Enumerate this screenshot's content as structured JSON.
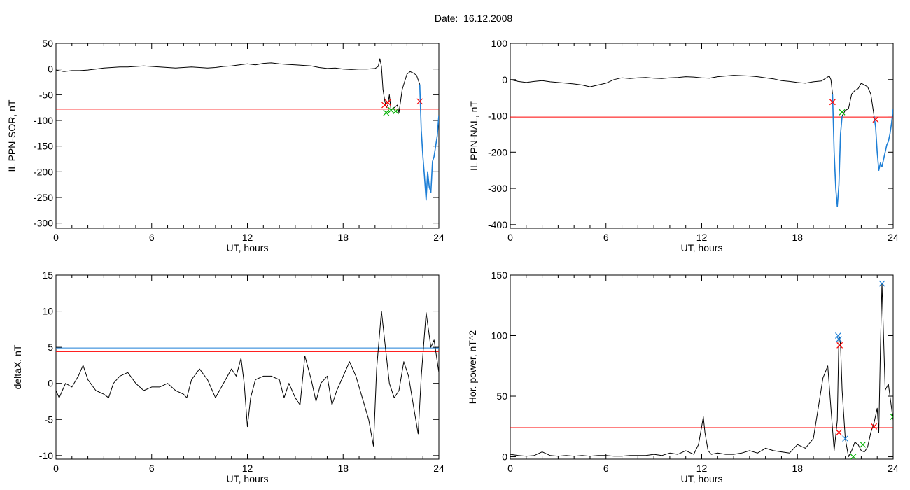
{
  "figure": {
    "title": "Date:  16.12.2008"
  },
  "chart_data": [
    {
      "type": "line",
      "xlabel": "UT, hours",
      "ylabel": "IL PPN-SOR, nT",
      "xlim": [
        0,
        24
      ],
      "ylim": [
        -310,
        50
      ],
      "x_ticks": [
        0,
        6,
        12,
        18,
        24
      ],
      "y_ticks": [
        50,
        0,
        -50,
        -100,
        -150,
        -200,
        -250,
        -300
      ],
      "threshold_lines": [
        {
          "color": "#ff0000",
          "value": -78
        }
      ],
      "series": [
        {
          "color": "#000000",
          "x": [
            0,
            0.5,
            1,
            1.5,
            2,
            2.5,
            3,
            3.5,
            4,
            4.5,
            5,
            5.5,
            6,
            6.5,
            7,
            7.5,
            8,
            8.5,
            9,
            9.5,
            10,
            10.5,
            11,
            11.5,
            12,
            12.5,
            13,
            13.5,
            14,
            14.5,
            15,
            15.5,
            16,
            16.5,
            17,
            17.5,
            18,
            18.5,
            19,
            19.5,
            20,
            20.2,
            20.3,
            20.4,
            20.5,
            20.6,
            20.7,
            20.8,
            20.9,
            21,
            21.2,
            21.4,
            21.5,
            21.7,
            21.9,
            22,
            22.2,
            22.4,
            22.6,
            22.8
          ],
          "y": [
            -2,
            -5,
            -3,
            -3,
            -2,
            0,
            2,
            3,
            4,
            4,
            5,
            6,
            5,
            4,
            3,
            2,
            3,
            4,
            3,
            2,
            3,
            5,
            6,
            8,
            10,
            8,
            11,
            12,
            10,
            9,
            8,
            7,
            6,
            3,
            1,
            2,
            0,
            -1,
            0,
            0,
            1,
            5,
            20,
            5,
            -40,
            -60,
            -75,
            -70,
            -50,
            -80,
            -75,
            -70,
            -85,
            -40,
            -20,
            -10,
            -5,
            -8,
            -12,
            -30
          ]
        },
        {
          "color": "#1e7fd6",
          "x": [
            22.8,
            22.9,
            23,
            23.1,
            23.2,
            23.3,
            23.4,
            23.5,
            23.6,
            23.7,
            23.8,
            23.9,
            24
          ],
          "y": [
            -30,
            -120,
            -170,
            -210,
            -255,
            -200,
            -230,
            -240,
            -180,
            -170,
            -150,
            -130,
            -90
          ]
        }
      ],
      "markers": [
        {
          "color": "#ff0000",
          "x": [
            20.6,
            20.8,
            22.8
          ],
          "y": [
            -70,
            -65,
            -63
          ]
        },
        {
          "color": "#00b000",
          "x": [
            20.7,
            21.0,
            21.3
          ],
          "y": [
            -85,
            -80,
            -82
          ]
        }
      ]
    },
    {
      "type": "line",
      "xlabel": "UT, hours",
      "ylabel": "IL PPN-NAL, nT",
      "xlim": [
        0,
        24
      ],
      "ylim": [
        -410,
        100
      ],
      "x_ticks": [
        0,
        6,
        12,
        18,
        24
      ],
      "y_ticks": [
        100,
        0,
        -100,
        -200,
        -300,
        -400
      ],
      "threshold_lines": [
        {
          "color": "#ff0000",
          "value": -103
        }
      ],
      "series": [
        {
          "color": "#000000",
          "x": [
            0,
            0.5,
            1,
            1.5,
            2,
            2.5,
            3,
            3.5,
            4,
            4.5,
            5,
            5.5,
            6,
            6.5,
            7,
            7.5,
            8,
            8.5,
            9,
            9.5,
            10,
            10.5,
            11,
            11.5,
            12,
            12.5,
            13,
            13.5,
            14,
            14.5,
            15,
            15.5,
            16,
            16.5,
            17,
            17.5,
            18,
            18.5,
            19,
            19.5,
            20,
            20.1,
            20.2
          ],
          "y": [
            0,
            -5,
            -8,
            -5,
            -3,
            -6,
            -8,
            -10,
            -12,
            -15,
            -20,
            -15,
            -10,
            0,
            5,
            3,
            5,
            6,
            4,
            3,
            5,
            6,
            8,
            7,
            5,
            4,
            8,
            10,
            12,
            11,
            10,
            8,
            5,
            2,
            -3,
            -5,
            -8,
            -10,
            -6,
            -4,
            10,
            0,
            -40
          ]
        },
        {
          "color": "#1e7fd6",
          "x": [
            20.2,
            20.3,
            20.4,
            20.5,
            20.6,
            20.7,
            20.8
          ],
          "y": [
            -40,
            -200,
            -300,
            -350,
            -290,
            -150,
            -100
          ]
        },
        {
          "color": "#000000",
          "x": [
            20.8,
            21,
            21.2,
            21.4,
            21.6,
            21.8,
            22,
            22.2,
            22.4,
            22.6,
            22.8
          ],
          "y": [
            -100,
            -85,
            -80,
            -40,
            -30,
            -25,
            -10,
            -15,
            -20,
            -40,
            -100
          ]
        },
        {
          "color": "#1e7fd6",
          "x": [
            22.8,
            22.9,
            23,
            23.1,
            23.2,
            23.3,
            23.4,
            23.5,
            23.6,
            23.7,
            23.8,
            23.9,
            24
          ],
          "y": [
            -100,
            -130,
            -200,
            -250,
            -230,
            -240,
            -220,
            -200,
            -180,
            -170,
            -150,
            -120,
            -80
          ]
        }
      ],
      "markers": [
        {
          "color": "#ff0000",
          "x": [
            20.2,
            22.9
          ],
          "y": [
            -62,
            -110
          ]
        },
        {
          "color": "#00b000",
          "x": [
            20.8
          ],
          "y": [
            -90
          ]
        }
      ]
    },
    {
      "type": "line",
      "xlabel": "UT, hours",
      "ylabel": "deltaX, nT",
      "xlim": [
        0,
        24
      ],
      "ylim": [
        -10.5,
        15
      ],
      "x_ticks": [
        0,
        6,
        12,
        18,
        24
      ],
      "y_ticks": [
        15,
        10,
        5,
        0,
        -5,
        -10
      ],
      "threshold_lines": [
        {
          "color": "#1e7fd6",
          "value": 4.9
        },
        {
          "color": "#ff0000",
          "value": 4.4
        }
      ],
      "series": [
        {
          "color": "#000000",
          "x": [
            0,
            0.2,
            0.4,
            0.6,
            1,
            1.4,
            1.7,
            2,
            2.5,
            3,
            3.3,
            3.6,
            4,
            4.5,
            5,
            5.5,
            6,
            6.5,
            7,
            7.5,
            8,
            8.2,
            8.5,
            9,
            9.5,
            10,
            10.5,
            11,
            11.3,
            11.6,
            11.8,
            12,
            12.2,
            12.5,
            13,
            13.5,
            14,
            14.3,
            14.6,
            15,
            15.3,
            15.6,
            16,
            16.3,
            16.6,
            17,
            17.3,
            17.6,
            18,
            18.4,
            18.8,
            19.2,
            19.6,
            19.9,
            20.1,
            20.4,
            20.6,
            20.9,
            21.2,
            21.5,
            21.8,
            22.1,
            22.4,
            22.7,
            22.9,
            23.2,
            23.5,
            23.7,
            24
          ],
          "y": [
            -1,
            -2,
            -1,
            0,
            -0.5,
            1,
            2.5,
            0.5,
            -1,
            -1.5,
            -2,
            0,
            1,
            1.5,
            0,
            -1,
            -0.5,
            -0.5,
            0,
            -1,
            -1.5,
            -2,
            0.5,
            2,
            0.5,
            -2,
            0,
            2,
            1,
            3.5,
            0,
            -6,
            -2,
            0.5,
            1,
            1,
            0.5,
            -2,
            0,
            -2,
            -3,
            3.8,
            0.5,
            -2.5,
            0,
            1,
            -3,
            -1,
            1,
            3,
            1,
            -2,
            -5,
            -8.7,
            2,
            10,
            6,
            0,
            -2,
            -1,
            3,
            1,
            -3,
            -7,
            1,
            9.8,
            5,
            6,
            1.5
          ]
        }
      ],
      "markers": []
    },
    {
      "type": "line",
      "xlabel": "UT, hours",
      "ylabel": "Hor. power, nT^2",
      "xlim": [
        0,
        24
      ],
      "ylim": [
        -2,
        150
      ],
      "x_ticks": [
        0,
        6,
        12,
        18,
        24
      ],
      "y_ticks": [
        150,
        100,
        50,
        0
      ],
      "threshold_lines": [
        {
          "color": "#ff0000",
          "value": 24
        }
      ],
      "series": [
        {
          "color": "#000000",
          "x": [
            0,
            0.5,
            1,
            1.5,
            2,
            2.5,
            3,
            3.5,
            4,
            4.5,
            5,
            5.5,
            6,
            6.5,
            7,
            7.5,
            8,
            8.5,
            9,
            9.5,
            10,
            10.5,
            11,
            11.5,
            11.8,
            12,
            12.1,
            12.2,
            12.4,
            12.6,
            13,
            13.5,
            14,
            14.5,
            15,
            15.5,
            16,
            16.5,
            17,
            17.5,
            18,
            18.5,
            19,
            19.3,
            19.6,
            19.9,
            20.1,
            20.3,
            20.5,
            20.6,
            20.7,
            20.8,
            21,
            21.2,
            21.4,
            21.6,
            21.8,
            22,
            22.2,
            22.4,
            22.6,
            22.8,
            23,
            23.1,
            23.2,
            23.3,
            23.5,
            23.7,
            24
          ],
          "y": [
            2,
            1,
            0.5,
            1,
            4,
            1,
            0.5,
            1,
            0.5,
            1,
            0.5,
            1,
            1,
            0.5,
            0.5,
            1,
            1,
            1,
            2,
            1,
            3,
            2,
            5,
            2,
            10,
            25,
            33,
            20,
            5,
            2,
            3,
            2,
            2,
            3,
            5,
            3,
            7,
            5,
            4,
            3,
            10,
            7,
            15,
            40,
            65,
            75,
            40,
            5,
            30,
            100,
            93,
            55,
            15,
            0,
            5,
            12,
            10,
            5,
            4,
            8,
            20,
            28,
            40,
            20,
            90,
            143,
            55,
            60,
            30
          ]
        }
      ],
      "markers": [
        {
          "color": "#ff0000",
          "x": [
            20.6,
            20.65,
            22.8
          ],
          "y": [
            20,
            92,
            25
          ]
        },
        {
          "color": "#1e7fd6",
          "x": [
            20.55,
            20.6,
            21.0,
            23.3
          ],
          "y": [
            100,
            97,
            15,
            143
          ]
        },
        {
          "color": "#00b000",
          "x": [
            21.5,
            22.1,
            24
          ],
          "y": [
            0,
            10,
            33
          ]
        }
      ]
    }
  ]
}
